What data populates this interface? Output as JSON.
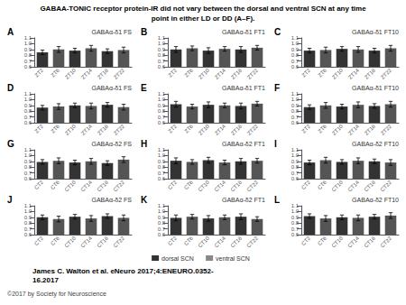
{
  "title": "GABAA-TONIC receptor protein-IR did not vary between the dorsal and ventral SCN at any time\npoint in either LD or DD (A–F).",
  "annotations": [
    "James C. Walton et al. eNeuro 2017;4:ENEURO.0352-\n16.2017",
    "©2017 by Society for Neuroscience"
  ],
  "legend": "bottom",
  "series": [
    {
      "name": "dorsal SCN",
      "color": "#333333"
    },
    {
      "name": "ventral SCN",
      "color": "#888888"
    }
  ],
  "chart_data": [
    {
      "type": "bar",
      "title": "GABAα-δ1 FS",
      "annotations": [
        "A"
      ],
      "categories": [
        "ZT2",
        "ZT6",
        "ZT10",
        "ZT14",
        "ZT18",
        "ZT22"
      ],
      "values": [
        0.85,
        0.9,
        0.88,
        0.92,
        0.87,
        0.89
      ],
      "errors": [
        0.04,
        0.05,
        0.04,
        0.05,
        0.04,
        0.05
      ],
      "colors": [
        "#333333",
        "#555555",
        "#333333",
        "#555555",
        "#333333",
        "#555555"
      ],
      "ylim": [
        0.6,
        1.1
      ],
      "yticks": [
        0.6,
        0.7,
        0.8,
        0.9,
        {
          "value": 1.0,
          "label": "1.0"
        },
        1.1
      ],
      "grid": false
    },
    {
      "type": "bar",
      "title": "GABAα-δ1 FT1",
      "annotations": [
        "B"
      ],
      "categories": [
        "ZT2",
        "ZT6",
        "ZT10",
        "ZT14",
        "ZT18",
        "ZT22"
      ],
      "values": [
        0.9,
        0.92,
        0.88,
        0.91,
        0.9,
        0.93
      ],
      "errors": [
        0.05,
        0.04,
        0.05,
        0.04,
        0.05,
        0.04
      ],
      "colors": [
        "#333333",
        "#555555",
        "#333333",
        "#555555",
        "#333333",
        "#555555"
      ],
      "ylim": [
        0.6,
        1.1
      ],
      "yticks": [
        0.6,
        0.7,
        0.8,
        0.9,
        {
          "value": 1.0,
          "label": "1.0"
        },
        1.1
      ],
      "grid": false
    },
    {
      "type": "bar",
      "title": "GABAα-δ1 FT10",
      "annotations": [
        "C"
      ],
      "categories": [
        "ZT2",
        "ZT6",
        "ZT10",
        "ZT14",
        "ZT18",
        "ZT22"
      ],
      "values": [
        0.88,
        0.89,
        0.91,
        0.9,
        0.88,
        0.92
      ],
      "errors": [
        0.04,
        0.05,
        0.04,
        0.05,
        0.04,
        0.05
      ],
      "colors": [
        "#333333",
        "#555555",
        "#333333",
        "#555555",
        "#333333",
        "#555555"
      ],
      "ylim": [
        0.6,
        1.1
      ],
      "yticks": [
        0.6,
        0.7,
        0.8,
        0.9,
        {
          "value": 1.0,
          "label": "1.0"
        },
        1.1
      ],
      "grid": false
    },
    {
      "type": "bar",
      "title": "GABAα-δ1 FS",
      "annotations": [
        "D"
      ],
      "categories": [
        "ZT2",
        "ZT6",
        "ZT10",
        "ZT14",
        "ZT18",
        "ZT22"
      ],
      "values": [
        0.86,
        0.88,
        0.9,
        0.89,
        0.91,
        0.87
      ],
      "errors": [
        0.04,
        0.05,
        0.04,
        0.05,
        0.04,
        0.05
      ],
      "colors": [
        "#333333",
        "#555555",
        "#333333",
        "#555555",
        "#333333",
        "#555555"
      ],
      "ylim": [
        0.6,
        1.1
      ],
      "yticks": [
        0.6,
        0.7,
        0.8,
        0.9,
        {
          "value": 1.0,
          "label": "1.0"
        },
        1.1
      ],
      "grid": false
    },
    {
      "type": "bar",
      "title": "GABAα-δ1 FT1",
      "annotations": [
        "E"
      ],
      "categories": [
        "ZT2",
        "ZT6",
        "ZT10",
        "ZT14",
        "ZT18",
        "ZT22"
      ],
      "values": [
        0.92,
        0.88,
        0.91,
        0.9,
        0.89,
        0.93
      ],
      "errors": [
        0.05,
        0.04,
        0.05,
        0.04,
        0.05,
        0.04
      ],
      "colors": [
        "#333333",
        "#555555",
        "#333333",
        "#555555",
        "#333333",
        "#555555"
      ],
      "ylim": [
        0.6,
        1.1
      ],
      "yticks": [
        0.6,
        0.7,
        0.8,
        0.9,
        {
          "value": 1.0,
          "label": "1.0"
        },
        1.1
      ],
      "grid": false
    },
    {
      "type": "bar",
      "title": "GABAα-δ1 FT10",
      "annotations": [
        "F"
      ],
      "categories": [
        "ZT2",
        "ZT6",
        "ZT10",
        "ZT14",
        "ZT18",
        "ZT22"
      ],
      "values": [
        0.87,
        0.9,
        0.88,
        0.91,
        0.89,
        0.92
      ],
      "errors": [
        0.04,
        0.05,
        0.04,
        0.05,
        0.04,
        0.05
      ],
      "colors": [
        "#333333",
        "#555555",
        "#333333",
        "#555555",
        "#333333",
        "#555555"
      ],
      "ylim": [
        0.6,
        1.1
      ],
      "yticks": [
        0.6,
        0.7,
        0.8,
        0.9,
        {
          "value": 1.0,
          "label": "1.0"
        },
        1.1
      ],
      "grid": false
    },
    {
      "type": "bar",
      "title": "GABAα-δ2 FS",
      "annotations": [
        "G"
      ],
      "categories": [
        "CT2",
        "CT6",
        "CT10",
        "CT14",
        "CT18",
        "CT22"
      ],
      "values": [
        0.89,
        0.91,
        0.88,
        0.9,
        0.87,
        0.93
      ],
      "errors": [
        0.04,
        0.05,
        0.04,
        0.05,
        0.04,
        0.05
      ],
      "colors": [
        "#333333",
        "#555555",
        "#333333",
        "#555555",
        "#333333",
        "#555555"
      ],
      "ylim": [
        0.6,
        1.1
      ],
      "yticks": [
        0.6,
        0.7,
        0.8,
        0.9,
        {
          "value": 1.0,
          "label": "1.0"
        },
        1.1
      ],
      "grid": false
    },
    {
      "type": "bar",
      "title": "GABAα-δ2 FT1",
      "annotations": [
        "H"
      ],
      "categories": [
        "CT2",
        "CT6",
        "CT10",
        "CT14",
        "CT18",
        "CT22"
      ],
      "values": [
        0.91,
        0.89,
        0.92,
        0.88,
        0.9,
        0.91
      ],
      "errors": [
        0.05,
        0.04,
        0.05,
        0.04,
        0.05,
        0.04
      ],
      "colors": [
        "#333333",
        "#555555",
        "#333333",
        "#555555",
        "#333333",
        "#555555"
      ],
      "ylim": [
        0.6,
        1.1
      ],
      "yticks": [
        0.6,
        0.7,
        0.8,
        0.9,
        {
          "value": 1.0,
          "label": "1.0"
        },
        1.1
      ],
      "grid": false
    },
    {
      "type": "bar",
      "title": "GABAα-δ2 FT10",
      "annotations": [
        "I"
      ],
      "categories": [
        "CT2",
        "CT6",
        "CT10",
        "CT14",
        "CT18",
        "CT22"
      ],
      "values": [
        0.88,
        0.92,
        0.89,
        0.91,
        0.9,
        0.88
      ],
      "errors": [
        0.04,
        0.05,
        0.04,
        0.05,
        0.04,
        0.05
      ],
      "colors": [
        "#333333",
        "#555555",
        "#333333",
        "#555555",
        "#333333",
        "#555555"
      ],
      "ylim": [
        0.6,
        1.1
      ],
      "yticks": [
        0.6,
        0.7,
        0.8,
        0.9,
        {
          "value": 1.0,
          "label": "1.0"
        },
        1.1
      ],
      "grid": false
    },
    {
      "type": "bar",
      "title": "GABAα-δ2 FS",
      "annotations": [
        "J"
      ],
      "categories": [
        "CT2",
        "CT6",
        "CT10",
        "CT14",
        "CT18",
        "CT22"
      ],
      "values": [
        0.9,
        0.87,
        0.91,
        0.88,
        0.92,
        0.89
      ],
      "errors": [
        0.04,
        0.05,
        0.04,
        0.05,
        0.04,
        0.05
      ],
      "colors": [
        "#333333",
        "#555555",
        "#333333",
        "#555555",
        "#333333",
        "#555555"
      ],
      "ylim": [
        0.6,
        1.1
      ],
      "yticks": [
        0.6,
        0.7,
        0.8,
        0.9,
        {
          "value": 1.0,
          "label": "1.0"
        },
        1.1
      ],
      "grid": false
    },
    {
      "type": "bar",
      "title": "GABAα-δ2 FT1",
      "annotations": [
        "K"
      ],
      "categories": [
        "CT2",
        "CT6",
        "CT10",
        "CT14",
        "CT18",
        "CT22"
      ],
      "values": [
        0.89,
        0.91,
        0.88,
        0.9,
        0.91,
        0.87
      ],
      "errors": [
        0.05,
        0.04,
        0.05,
        0.04,
        0.05,
        0.04
      ],
      "colors": [
        "#333333",
        "#555555",
        "#333333",
        "#555555",
        "#333333",
        "#555555"
      ],
      "ylim": [
        0.6,
        1.1
      ],
      "yticks": [
        0.6,
        0.7,
        0.8,
        0.9,
        {
          "value": 1.0,
          "label": "1.0"
        },
        1.1
      ],
      "grid": false
    },
    {
      "type": "bar",
      "title": "GABAα-δ2 FT10",
      "annotations": [
        "L"
      ],
      "categories": [
        "CT2",
        "CT6",
        "CT10",
        "CT14",
        "CT18",
        "CT22"
      ],
      "values": [
        0.92,
        0.88,
        0.9,
        0.89,
        0.91,
        0.93
      ],
      "errors": [
        0.04,
        0.05,
        0.04,
        0.05,
        0.04,
        0.05
      ],
      "colors": [
        "#333333",
        "#555555",
        "#333333",
        "#555555",
        "#333333",
        "#555555"
      ],
      "ylim": [
        0.6,
        1.1
      ],
      "yticks": [
        0.6,
        0.7,
        0.8,
        0.9,
        {
          "value": 1.0,
          "label": "1.0"
        },
        1.1
      ],
      "grid": false
    }
  ]
}
